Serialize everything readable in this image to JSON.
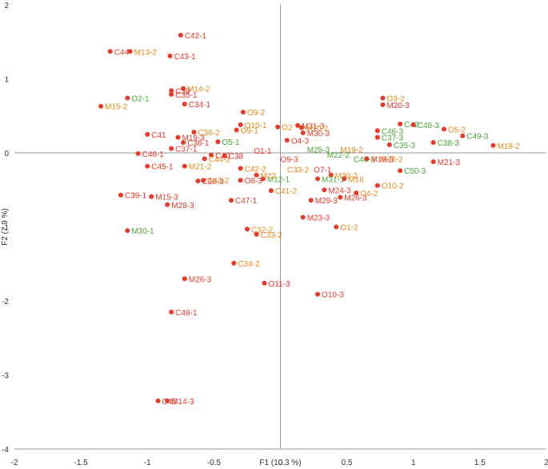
{
  "chart_data": {
    "type": "scatter",
    "title": "",
    "xlabel": "F1 (10.3 %)",
    "ylabel": "F2 (7.9 %)",
    "xlim": [
      -2,
      2
    ],
    "ylim": [
      -4,
      2
    ],
    "x_ticks": [
      "-2",
      "-1.5",
      "-1",
      "-0.5",
      "0",
      "0.5",
      "1",
      "1.5",
      "2"
    ],
    "y_ticks": [
      "2",
      "1",
      "0",
      "-1",
      "-2",
      "-3",
      "-4"
    ],
    "grid": false,
    "legend": "none",
    "colors": {
      "point": "#e8392a",
      "red": "#e8392a",
      "orange": "#e8891a",
      "green": "#4ea23a",
      "axis": "#999999"
    },
    "points": [
      {
        "label": "C42-1",
        "x": -0.75,
        "y": 1.59,
        "color": "red"
      },
      {
        "label": "C44",
        "x": -1.28,
        "y": 1.37,
        "color": "red"
      },
      {
        "label": "M13-2",
        "x": -1.13,
        "y": 1.37,
        "color": "orange"
      },
      {
        "label": "C43-1",
        "x": -0.83,
        "y": 1.31,
        "color": "red"
      },
      {
        "label": "M14-2",
        "x": -0.73,
        "y": 0.87,
        "color": "orange"
      },
      {
        "label": "C39",
        "x": -0.82,
        "y": 0.84,
        "color": "red"
      },
      {
        "label": "C35-1",
        "x": -0.82,
        "y": 0.79,
        "color": "red"
      },
      {
        "label": "O2-1",
        "x": -1.15,
        "y": 0.74,
        "color": "green"
      },
      {
        "label": "C34-1",
        "x": -0.72,
        "y": 0.66,
        "color": "red"
      },
      {
        "label": "M15-2",
        "x": -1.35,
        "y": 0.63,
        "color": "orange"
      },
      {
        "label": "O9-2",
        "x": -0.28,
        "y": 0.55,
        "color": "orange"
      },
      {
        "label": "O3-2",
        "x": 0.77,
        "y": 0.74,
        "color": "orange"
      },
      {
        "label": "M20-3",
        "x": 0.77,
        "y": 0.65,
        "color": "red"
      },
      {
        "label": "O10-1",
        "x": -0.3,
        "y": 0.38,
        "color": "orange"
      },
      {
        "label": "O9-1",
        "x": -0.33,
        "y": 0.31,
        "color": "orange"
      },
      {
        "label": "C36-2",
        "x": -0.65,
        "y": 0.28,
        "color": "orange"
      },
      {
        "label": "C41",
        "x": -1.0,
        "y": 0.25,
        "color": "red"
      },
      {
        "label": "M31-3",
        "x": 0.13,
        "y": 0.37,
        "color": "red"
      },
      {
        "label": "O2",
        "x": -0.02,
        "y": 0.35,
        "color": "orange"
      },
      {
        "label": "M10-2",
        "x": 0.16,
        "y": 0.34,
        "color": "orange"
      },
      {
        "label": "M30-3",
        "x": 0.17,
        "y": 0.27,
        "color": "red"
      },
      {
        "label": "M19-3",
        "x": -0.77,
        "y": 0.21,
        "color": "red"
      },
      {
        "label": "C38-1",
        "x": -0.73,
        "y": 0.14,
        "color": "red"
      },
      {
        "label": "O4-3",
        "x": 0.05,
        "y": 0.17,
        "color": "red"
      },
      {
        "label": "C42",
        "x": 0.9,
        "y": 0.39,
        "color": "green"
      },
      {
        "label": "C48-3",
        "x": 1.0,
        "y": 0.38,
        "color": "green"
      },
      {
        "label": "O5-2",
        "x": 1.23,
        "y": 0.32,
        "color": "orange"
      },
      {
        "label": "C46-3",
        "x": 0.73,
        "y": 0.3,
        "color": "green"
      },
      {
        "label": "C49-3",
        "x": 1.37,
        "y": 0.23,
        "color": "green"
      },
      {
        "label": "C37-3",
        "x": 0.73,
        "y": 0.21,
        "color": "green"
      },
      {
        "label": "C38-3",
        "x": 1.15,
        "y": 0.14,
        "color": "green"
      },
      {
        "label": "C35-3",
        "x": 0.82,
        "y": 0.11,
        "color": "green"
      },
      {
        "label": "M18-2",
        "x": 1.6,
        "y": 0.1,
        "color": "orange"
      },
      {
        "label": "O5-1",
        "x": -0.47,
        "y": 0.15,
        "color": "green"
      },
      {
        "label": "C37-1",
        "x": -0.82,
        "y": 0.06,
        "color": "red"
      },
      {
        "label": "C46-1",
        "x": -1.07,
        "y": -0.01,
        "color": "red"
      },
      {
        "label": "C40",
        "x": -0.52,
        "y": -0.03,
        "color": "red"
      },
      {
        "label": "C38",
        "x": -0.42,
        "y": -0.04,
        "color": "red"
      },
      {
        "label": "C44-2",
        "x": -0.57,
        "y": -0.08,
        "color": "orange"
      },
      {
        "label": "C45-1",
        "x": -1.0,
        "y": -0.18,
        "color": "red"
      },
      {
        "label": "M21-2",
        "x": -0.72,
        "y": -0.18,
        "color": "orange"
      },
      {
        "label": "C42-2",
        "x": -0.3,
        "y": -0.21,
        "color": "orange"
      },
      {
        "label": "M21-3",
        "x": 1.15,
        "y": -0.12,
        "color": "red"
      },
      {
        "label": "C50-3",
        "x": 0.9,
        "y": -0.24,
        "color": "green"
      },
      {
        "label": "M18-3",
        "x": 0.65,
        "y": -0.08,
        "color": "red"
      },
      {
        "label": "M30-2",
        "x": 0.38,
        "y": -0.3,
        "color": "orange"
      },
      {
        "label": "M16",
        "x": 0.48,
        "y": -0.35,
        "color": "orange"
      },
      {
        "label": "O10-2",
        "x": 0.73,
        "y": -0.44,
        "color": "orange"
      },
      {
        "label": "M31-1",
        "x": 0.28,
        "y": -0.35,
        "color": "green"
      },
      {
        "label": "M12-1",
        "x": -0.13,
        "y": -0.35,
        "color": "green"
      },
      {
        "label": "M22",
        "x": -0.18,
        "y": -0.3,
        "color": "orange"
      },
      {
        "label": "C36-3",
        "x": -0.62,
        "y": -0.38,
        "color": "red"
      },
      {
        "label": "C43-2",
        "x": -0.58,
        "y": -0.37,
        "color": "orange"
      },
      {
        "label": "O8-3",
        "x": -0.3,
        "y": -0.37,
        "color": "red"
      },
      {
        "label": "C39-1",
        "x": -1.2,
        "y": -0.57,
        "color": "red"
      },
      {
        "label": "M15-3",
        "x": -0.97,
        "y": -0.59,
        "color": "red"
      },
      {
        "label": "C47-1",
        "x": -0.37,
        "y": -0.64,
        "color": "red"
      },
      {
        "label": "C41-2",
        "x": -0.07,
        "y": -0.51,
        "color": "orange"
      },
      {
        "label": "M24-3",
        "x": 0.33,
        "y": -0.5,
        "color": "red"
      },
      {
        "label": "O4-2",
        "x": 0.57,
        "y": -0.54,
        "color": "orange"
      },
      {
        "label": "M26-3",
        "x": 0.45,
        "y": -0.6,
        "color": "red"
      },
      {
        "label": "M29-3",
        "x": 0.23,
        "y": -0.64,
        "color": "red"
      },
      {
        "label": "M28-3",
        "x": -0.85,
        "y": -0.7,
        "color": "red"
      },
      {
        "label": "M23-3",
        "x": 0.17,
        "y": -0.87,
        "color": "red"
      },
      {
        "label": "O1-2",
        "x": 0.42,
        "y": -1.0,
        "color": "orange"
      },
      {
        "label": "M30-1",
        "x": -1.15,
        "y": -1.05,
        "color": "green"
      },
      {
        "label": "C32-2",
        "x": -0.25,
        "y": -1.03,
        "color": "orange"
      },
      {
        "label": "C33-2",
        "x": -0.18,
        "y": -1.1,
        "color": "orange"
      },
      {
        "label": "C34-2",
        "x": -0.35,
        "y": -1.49,
        "color": "orange"
      },
      {
        "label": "M26-3",
        "x": -0.72,
        "y": -1.7,
        "color": "red"
      },
      {
        "label": "O11-3",
        "x": -0.12,
        "y": -1.76,
        "color": "red"
      },
      {
        "label": "O10-3",
        "x": 0.28,
        "y": -1.91,
        "color": "red"
      },
      {
        "label": "C48-1",
        "x": -0.82,
        "y": -2.15,
        "color": "red"
      },
      {
        "label": "C45",
        "x": -0.92,
        "y": -3.35,
        "color": "red"
      },
      {
        "label": "M14-3",
        "x": -0.85,
        "y": -3.35,
        "color": "red"
      }
    ],
    "cluster_labels": [
      {
        "label": "O1-1",
        "x": -0.2,
        "y": 0.03,
        "color": "red"
      },
      {
        "label": "M25-3",
        "x": 0.2,
        "y": 0.05,
        "color": "green"
      },
      {
        "label": "M19-2",
        "x": 0.45,
        "y": 0.05,
        "color": "orange"
      },
      {
        "label": "C40-3",
        "x": 0.55,
        "y": -0.08,
        "color": "green"
      },
      {
        "label": "M23-2",
        "x": 0.75,
        "y": -0.08,
        "color": "orange"
      },
      {
        "label": "C33-2",
        "x": 0.05,
        "y": -0.22,
        "color": "orange"
      },
      {
        "label": "O7-1",
        "x": 0.25,
        "y": -0.22,
        "color": "red"
      },
      {
        "label": "M22-2",
        "x": 0.35,
        "y": -0.02,
        "color": "green"
      },
      {
        "label": "O9-3",
        "x": 0.0,
        "y": -0.08,
        "color": "red"
      }
    ]
  }
}
